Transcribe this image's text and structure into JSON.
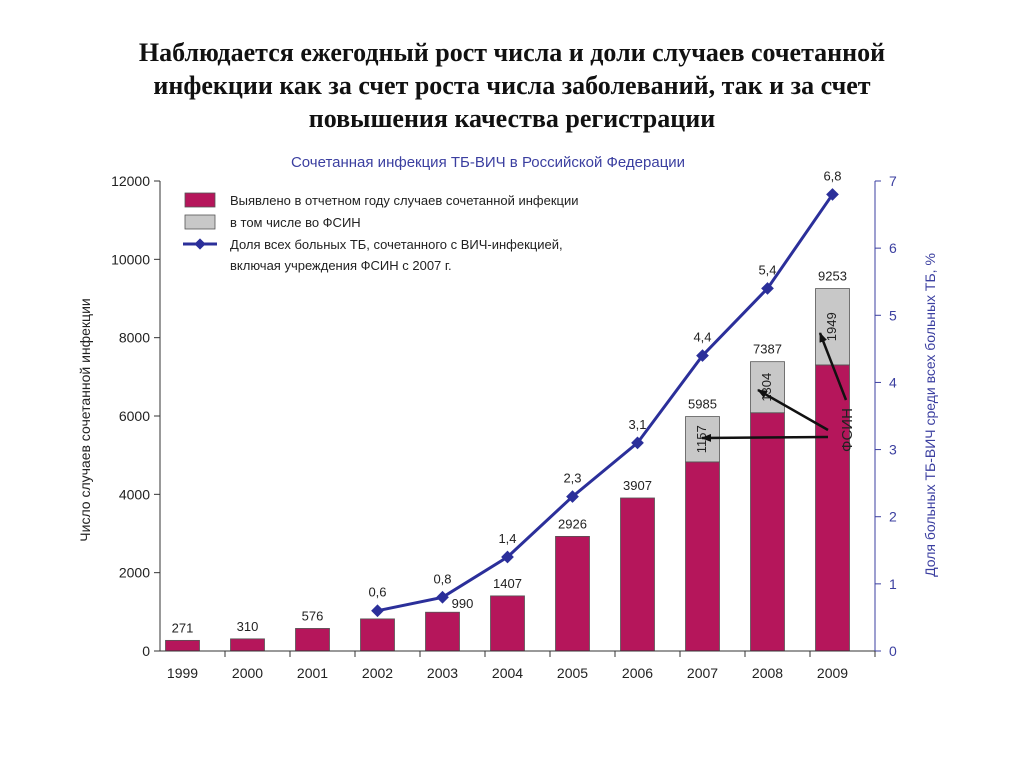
{
  "slide": {
    "title_lines": [
      "Наблюдается ежегодный рост числа и доли случаев сочетанной",
      "инфекции как за счет роста числа заболеваний, так и за счет",
      "повышения качества регистрации"
    ]
  },
  "chart_data": {
    "type": "bar",
    "title": "Сочетанная инфекция ТБ-ВИЧ в Российской Федерации",
    "categories": [
      "1999",
      "2000",
      "2001",
      "2002",
      "2003",
      "2004",
      "2005",
      "2006",
      "2007",
      "2008",
      "2009"
    ],
    "ylabel": "Число случаев сочетанной инфекции",
    "ylabel_right": "Доля больных ТБ-ВИЧ среди всех больных ТБ, %",
    "ylim": [
      0,
      12000
    ],
    "yticks": [
      0,
      2000,
      4000,
      6000,
      8000,
      10000,
      12000
    ],
    "ylim_right": [
      0,
      7
    ],
    "yticks_right": [
      0,
      1,
      2,
      3,
      4,
      5,
      6,
      7
    ],
    "legend_position": "top-left",
    "legend": [
      "Выявлено в отчетном году случаев сочетанной инфекции",
      "в том числе во ФСИН",
      "Доля всех больных ТБ, сочетанного с ВИЧ-инфекцией,",
      "включая учреждения ФСИН с 2007 г."
    ],
    "series": [
      {
        "name": "Выявлено в отчетном году случаев сочетанной инфекции",
        "type": "bar",
        "color": "#b5165b",
        "values": [
          271,
          310,
          576,
          820,
          990,
          1407,
          2926,
          3907,
          5985,
          7387,
          9253
        ],
        "labels": [
          "271",
          "310",
          "576",
          "",
          "990",
          "1407",
          "2926",
          "3907",
          "5985",
          "7387",
          "9253"
        ]
      },
      {
        "name": "в том числе во ФСИН",
        "type": "bar-stacked-top",
        "color": "#c8c8c8",
        "values": [
          null,
          null,
          null,
          null,
          null,
          null,
          null,
          null,
          1157,
          1304,
          1949
        ],
        "labels": [
          "",
          "",
          "",
          "",
          "",
          "",
          "",
          "",
          "1157",
          "1304",
          "1949"
        ]
      },
      {
        "name": "Доля всех больных ТБ, сочетанного с ВИЧ-инфекцией, включая учреждения ФСИН с 2007 г.",
        "type": "line",
        "axis": "right",
        "color": "#2b2f9a",
        "values": [
          null,
          null,
          null,
          0.6,
          0.8,
          1.4,
          2.3,
          3.1,
          4.4,
          5.4,
          6.8
        ],
        "labels": [
          "",
          "",
          "",
          "0,6",
          "0,8",
          "1,4",
          "2,3",
          "3,1",
          "4,4",
          "5,4",
          "6,8"
        ]
      }
    ],
    "annotation": "ФСИН"
  }
}
